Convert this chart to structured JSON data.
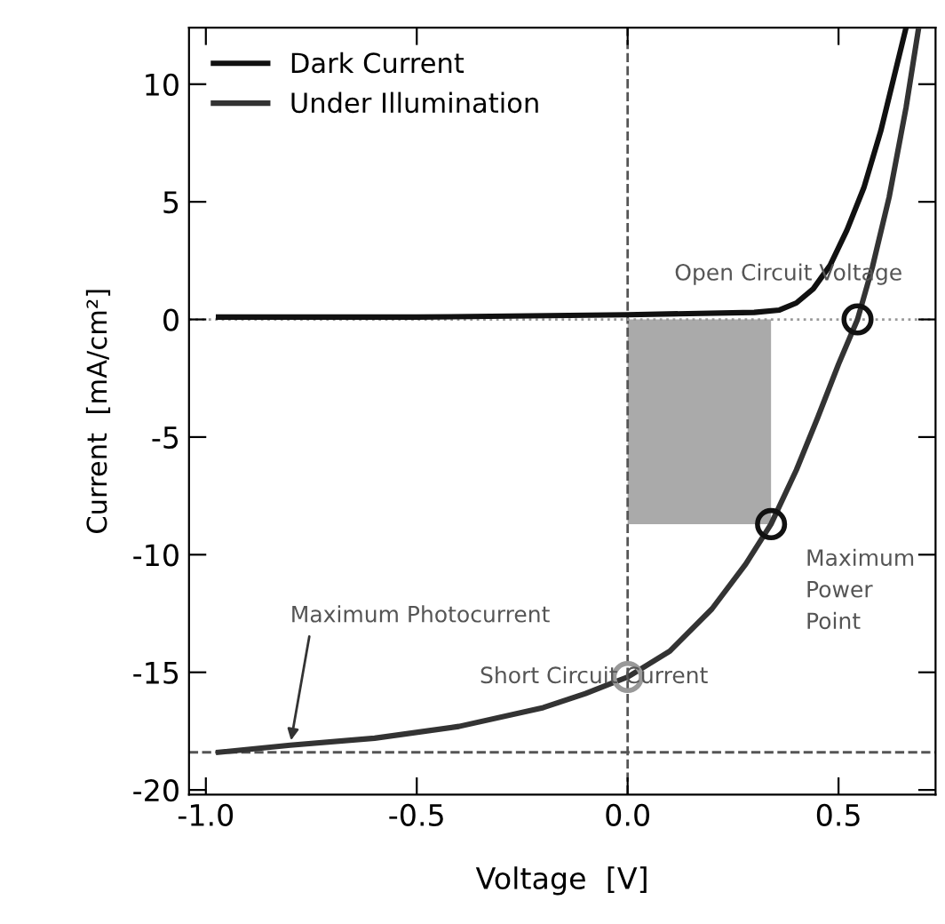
{
  "chart_data": {
    "type": "line",
    "xlabel": "Voltage  [V]",
    "ylabel": "Current  [mA/cm²]",
    "xlim": [
      -1.04,
      0.73
    ],
    "ylim": [
      -20.2,
      12.4
    ],
    "xticks": [
      {
        "value": -1.0,
        "label": "-1.0"
      },
      {
        "value": -0.5,
        "label": "-0.5"
      },
      {
        "value": 0.0,
        "label": "0.0"
      },
      {
        "value": 0.5,
        "label": "0.5"
      }
    ],
    "yticks": [
      -20,
      -15,
      -10,
      -5,
      0,
      5,
      10
    ],
    "legend": "top left",
    "grid": false,
    "line_style": "solid",
    "series": [
      {
        "type": "area",
        "color": "#aaaaaa",
        "x": [
          0.0,
          0.34
        ],
        "values": [
          -8.7,
          -8.7
        ]
      },
      {
        "name": "Dark Current",
        "color": "#111111",
        "x": [
          -0.97,
          -0.5,
          0.0,
          0.3,
          0.36,
          0.4,
          0.44,
          0.48,
          0.52,
          0.56,
          0.6,
          0.63,
          0.66
        ],
        "values": [
          0.1,
          0.1,
          0.2,
          0.3,
          0.4,
          0.7,
          1.3,
          2.3,
          3.8,
          5.6,
          8.0,
          10.2,
          12.4
        ]
      },
      {
        "name": "Under Illumination",
        "color": "#333333",
        "x": [
          -0.97,
          -0.8,
          -0.6,
          -0.4,
          -0.2,
          -0.1,
          0.0,
          0.1,
          0.2,
          0.28,
          0.34,
          0.4,
          0.45,
          0.5,
          0.545,
          0.58,
          0.62,
          0.66,
          0.69
        ],
        "values": [
          -18.4,
          -18.1,
          -17.8,
          -17.3,
          -16.5,
          -15.9,
          -15.2,
          -14.1,
          -12.3,
          -10.4,
          -8.7,
          -6.4,
          -4.2,
          -1.9,
          0.0,
          2.2,
          5.2,
          9.0,
          12.4
        ]
      }
    ],
    "ref_lines": [
      {
        "axis": "y",
        "value": -18.4,
        "line_style": "dashed",
        "color": "#555555"
      },
      {
        "axis": "x",
        "value": 0.0,
        "line_style": "dashed",
        "color": "#555555"
      },
      {
        "axis": "y",
        "value": 0.0,
        "line_style": "dotted",
        "color": "#999999"
      }
    ],
    "annotations": [
      {
        "text": "Open Circuit Voltage",
        "x": 0.545,
        "y": 0.0
      },
      {
        "text": "Maximum\nPower\nPoint",
        "x": 0.34,
        "y": -8.7
      },
      {
        "text": "Short Circuit Current",
        "x": 0.0,
        "y": -15.2
      },
      {
        "text": "Maximum Photocurrent",
        "x": -0.8,
        "y": -18.1
      }
    ]
  }
}
